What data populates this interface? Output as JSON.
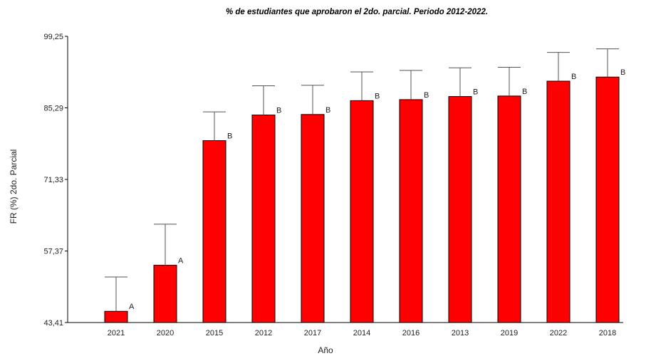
{
  "chart_data": {
    "type": "bar",
    "title": "% de estudiantes que aprobaron el 2do. parcial. Periodo 2012-2022.",
    "xlabel": "Año",
    "ylabel": "FR (%) 2do. Parcial",
    "ylim": [
      43.41,
      99.25
    ],
    "yticks": [
      "43,41",
      "57,37",
      "71,33",
      "85,29",
      "99,25"
    ],
    "grid": false,
    "bar_color": "#ff0000",
    "categories": [
      "2021",
      "2020",
      "2015",
      "2012",
      "2017",
      "2014",
      "2016",
      "2013",
      "2019",
      "2022",
      "2018"
    ],
    "values": [
      45.6,
      54.6,
      78.9,
      83.9,
      84.0,
      86.7,
      86.9,
      87.5,
      87.6,
      90.5,
      91.3
    ],
    "error_upper": [
      52.3,
      62.6,
      84.5,
      89.6,
      89.7,
      92.3,
      92.6,
      93.1,
      93.2,
      96.1,
      96.8
    ],
    "letters": [
      "A",
      "A",
      "B",
      "B",
      "B",
      "B",
      "B",
      "B",
      "B",
      "B",
      "B"
    ]
  }
}
